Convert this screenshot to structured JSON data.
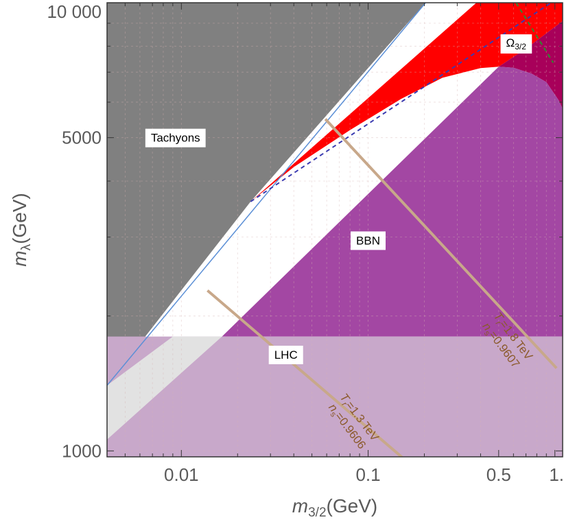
{
  "chart_data": {
    "type": "area",
    "title": "",
    "xlabel": {
      "main": "m",
      "sub": "3/2",
      "unit": "(GeV)"
    },
    "ylabel": {
      "main": "m",
      "sub": "λ",
      "unit": "(GeV)"
    },
    "xscale": "log",
    "yscale": "log",
    "xlim": [
      0.004,
      1.1
    ],
    "ylim": [
      970,
      10000
    ],
    "grid": true,
    "x_ticks": [
      {
        "value": 0.01,
        "label": "0.01"
      },
      {
        "value": 0.1,
        "label": "0.1"
      },
      {
        "value": 0.5,
        "label": "0.5"
      },
      {
        "value": 1.0,
        "label": "1."
      }
    ],
    "y_ticks": [
      {
        "value": 1000,
        "label": "1000"
      },
      {
        "value": 5000,
        "label": "5000"
      },
      {
        "value": 10000,
        "label": "10 000"
      }
    ],
    "regions": [
      {
        "name": "Tachyons",
        "color": "#808080",
        "label": "Tachyons",
        "label_at": [
          0.0093,
          5000
        ],
        "points": [
          [
            0.004,
            1400
          ],
          [
            0.0235,
            3600
          ],
          [
            0.203,
            10000
          ],
          [
            0.004,
            10000
          ]
        ]
      },
      {
        "name": "Ωexcluded",
        "color": "#ff0000",
        "points": [
          [
            0.0235,
            3600
          ],
          [
            0.04,
            4300
          ],
          [
            0.08,
            5200
          ],
          [
            0.15,
            6100
          ],
          [
            0.25,
            6800
          ],
          [
            0.4,
            7150
          ],
          [
            0.5,
            7200
          ],
          [
            0.7,
            7900
          ],
          [
            1.1,
            9100
          ],
          [
            1.1,
            10000
          ],
          [
            0.38,
            10000
          ]
        ]
      },
      {
        "name": "Overlap",
        "color": "#a8005a",
        "points": [
          [
            0.5,
            7200
          ],
          [
            0.6,
            7160
          ],
          [
            0.75,
            6950
          ],
          [
            0.9,
            6650
          ],
          [
            1.05,
            6050
          ],
          [
            1.1,
            5800
          ],
          [
            1.1,
            9100
          ],
          [
            0.7,
            7900
          ]
        ]
      },
      {
        "name": "BBN",
        "color": "#a347a3",
        "label": "BBN",
        "label_at": [
          0.1,
          2950
        ],
        "points": [
          [
            0.0165,
            1800
          ],
          [
            0.5,
            7200
          ],
          [
            0.6,
            7160
          ],
          [
            0.75,
            6950
          ],
          [
            0.9,
            6650
          ],
          [
            1.05,
            6050
          ],
          [
            1.1,
            5800
          ],
          [
            1.1,
            1800
          ]
        ]
      },
      {
        "name": "LHC",
        "color": "#c8a8ca",
        "label": "LHC",
        "label_at": [
          0.0363,
          1640
        ],
        "points": [
          [
            0.004,
            1800
          ],
          [
            1.1,
            1800
          ],
          [
            1.1,
            970
          ],
          [
            0.004,
            970
          ]
        ]
      },
      {
        "name": "LHC-light",
        "color": "#e2e2e2",
        "points": [
          [
            0.004,
            1400
          ],
          [
            0.009,
            1800
          ],
          [
            0.0165,
            1800
          ],
          [
            0.004,
            1060
          ]
        ]
      }
    ],
    "lines": [
      {
        "name": "Ω3/2",
        "style": "dashed",
        "color": "#3b3bb0",
        "points": [
          [
            0.0235,
            3600
          ],
          [
            1.1,
            10400
          ]
        ]
      },
      {
        "name": "green",
        "style": "dashed",
        "color": "#2e8b2e",
        "points": [
          [
            0.62,
            10000
          ],
          [
            0.98,
            7350
          ]
        ]
      },
      {
        "name": "Tr13",
        "style": "solid",
        "color": "#c8a88a",
        "points": [
          [
            0.0138,
            2280
          ],
          [
            0.16,
            950
          ]
        ]
      },
      {
        "name": "Tr18",
        "style": "solid",
        "color": "#c8a88a",
        "points": [
          [
            0.059,
            5500
          ],
          [
            1.02,
            1530
          ]
        ]
      }
    ],
    "annotations": [
      {
        "text_main": "Ω",
        "text_sub": "3/2",
        "x": 0.62,
        "y": 8150
      },
      {
        "line1_main": "T",
        "line1_sub": "r",
        "line1_rest": "=1.3 TeV",
        "line2_main": "n",
        "line2_sub": "s",
        "line2_rest": "=0.9606",
        "x": 0.083,
        "y": 1160,
        "angle": 53
      },
      {
        "line1_main": "T",
        "line1_sub": "r",
        "line1_rest": "=1.8 TeV",
        "line2_main": "n",
        "line2_sub": "s",
        "line2_rest": "=0.9607",
        "x": 0.553,
        "y": 1760,
        "angle": 53
      }
    ]
  }
}
